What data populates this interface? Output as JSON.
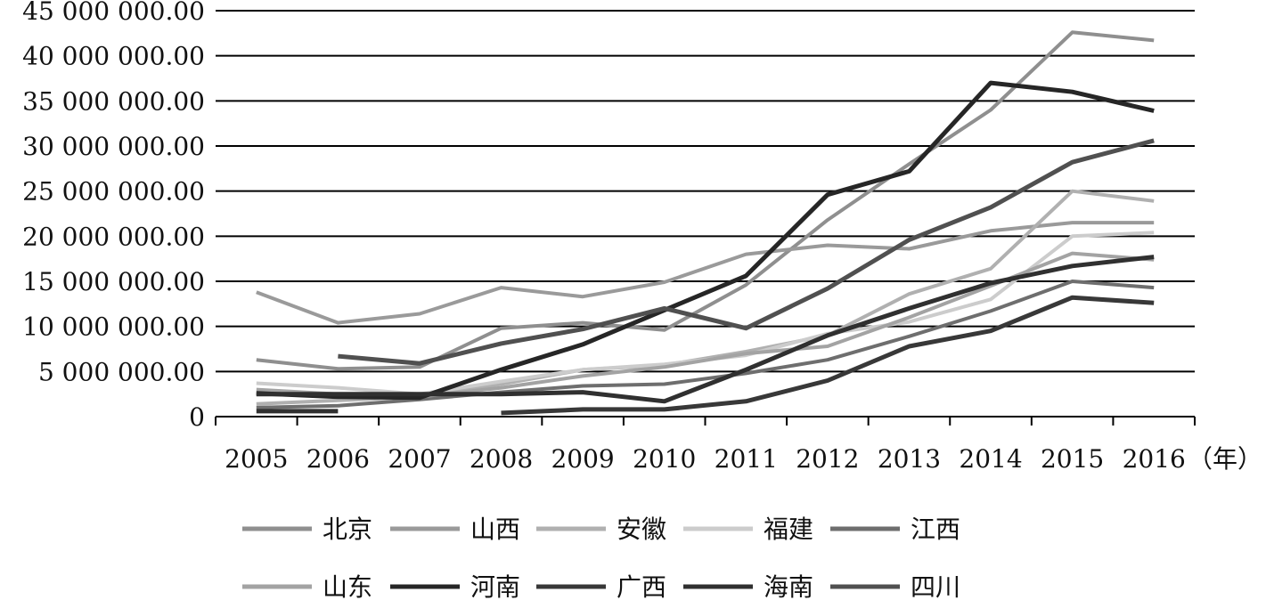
{
  "chart_data": {
    "type": "line",
    "x": [
      "2005",
      "2006",
      "2007",
      "2008",
      "2009",
      "2010",
      "2011",
      "2012",
      "2013",
      "2014",
      "2015",
      "2016"
    ],
    "x_unit": "（年）",
    "ylim": [
      0,
      45000000
    ],
    "y_ticks": [
      0,
      5000000,
      10000000,
      15000000,
      20000000,
      25000000,
      30000000,
      35000000,
      40000000,
      45000000
    ],
    "y_tick_labels": [
      "0",
      "5 000 000.00",
      "10 000 000.00",
      "15 000 000.00",
      "20 000 000.00",
      "25 000 000.00",
      "30 000 000.00",
      "35 000 000.00",
      "40 000 000.00",
      "45 000 000.00"
    ],
    "grid": "horizontal",
    "legend_position": "bottom",
    "series": [
      {
        "name": "北京",
        "color": "#8f8f8f",
        "width": 4,
        "values": [
          6300000,
          5300000,
          5500000,
          9800000,
          10400000,
          9600000,
          14600000,
          21800000,
          28000000,
          34000000,
          42600000,
          41700000
        ]
      },
      {
        "name": "山西",
        "color": "#9a9a9a",
        "width": 4,
        "values": [
          13800000,
          10400000,
          11400000,
          14300000,
          13300000,
          14900000,
          18000000,
          19000000,
          18600000,
          20600000,
          21500000,
          21500000
        ]
      },
      {
        "name": "安徽",
        "color": "#b0b0b0",
        "width": 4,
        "values": [
          1400000,
          1800000,
          2200000,
          3600000,
          5200000,
          5700000,
          7200000,
          9000000,
          13600000,
          16400000,
          25000000,
          23900000
        ]
      },
      {
        "name": "福建",
        "color": "#cccccc",
        "width": 4,
        "values": [
          3700000,
          3200000,
          2500000,
          3900000,
          5200000,
          5800000,
          6800000,
          9200000,
          10500000,
          13000000,
          20000000,
          20400000
        ]
      },
      {
        "name": "江西",
        "color": "#6e6e6e",
        "width": 4,
        "values": [
          1000000,
          1200000,
          1900000,
          2700000,
          3400000,
          3600000,
          4800000,
          6300000,
          8900000,
          11700000,
          15000000,
          14300000
        ]
      },
      {
        "name": "山东",
        "color": "#a3a3a3",
        "width": 4,
        "values": [
          3000000,
          2500000,
          2200000,
          3200000,
          4500000,
          5500000,
          7000000,
          7800000,
          11000000,
          14500000,
          18100000,
          17400000
        ]
      },
      {
        "name": "河南",
        "color": "#262626",
        "width": 5,
        "values": [
          2600000,
          2200000,
          2100000,
          5200000,
          8000000,
          11800000,
          15600000,
          24600000,
          27200000,
          37000000,
          36000000,
          33900000
        ]
      },
      {
        "name": "广西",
        "color": "#383838",
        "width": 5,
        "values": [
          null,
          null,
          null,
          400000,
          800000,
          800000,
          1700000,
          4000000,
          7800000,
          9500000,
          13200000,
          12600000
        ]
      },
      {
        "name": "海南",
        "color": "#303030",
        "width": 5,
        "values": [
          2500000,
          2500000,
          2500000,
          2500000,
          2700000,
          1700000,
          5200000,
          9000000,
          12000000,
          14800000,
          16700000,
          17700000
        ]
      },
      {
        "name": "四川",
        "color": "#505050",
        "width": 5,
        "values": [
          null,
          6700000,
          5900000,
          8100000,
          9700000,
          12000000,
          9800000,
          14200000,
          19600000,
          23200000,
          28200000,
          30600000
        ]
      }
    ],
    "extra_segment": {
      "series": "海南",
      "from": "2005",
      "to": "2006",
      "value": 600000
    }
  }
}
